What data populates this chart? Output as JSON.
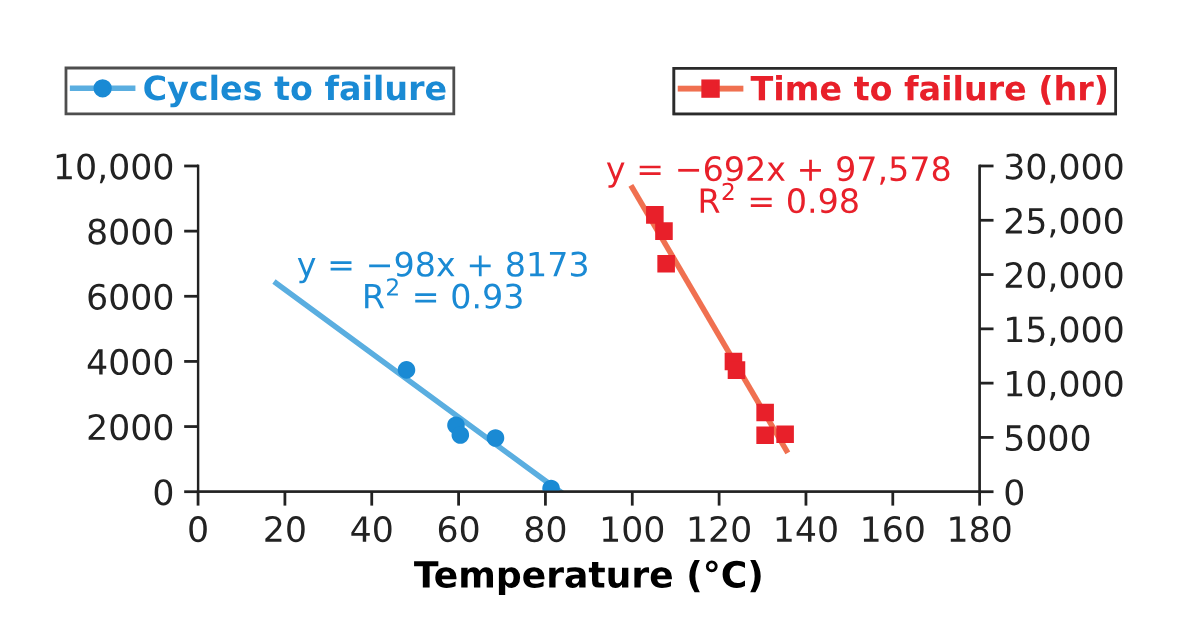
{
  "chart_data": {
    "type": "scatter",
    "xlabel": "Temperature (°C)",
    "xlim": [
      0,
      180
    ],
    "xticks": [
      0,
      20,
      40,
      60,
      80,
      100,
      120,
      140,
      160,
      180
    ],
    "ylim": [
      0,
      10000
    ],
    "yticks": [
      0,
      2000,
      4000,
      6000,
      8000,
      {
        "value": 10000,
        "label": "10,000"
      }
    ],
    "y2lim": [
      0,
      30000
    ],
    "y2ticks": [
      0,
      5000,
      {
        "value": 10000,
        "label": "10,000"
      },
      {
        "value": 15000,
        "label": "15,000"
      },
      {
        "value": 20000,
        "label": "20,000"
      },
      {
        "value": 25000,
        "label": "25,000"
      },
      {
        "value": 30000,
        "label": "30,000"
      }
    ],
    "grid": false,
    "legend": "top",
    "series": [
      {
        "name": "Cycles to failure",
        "color": "#1a8ad4",
        "marker": "circle",
        "x": [
          48,
          59.4,
          60.4,
          68.5,
          81.3
        ],
        "values": [
          3740,
          2040,
          1740,
          1650,
          100
        ]
      },
      {
        "type": "line",
        "color": "#5aaee0",
        "marker": "none",
        "x": [
          18,
          83.4
        ],
        "values": [
          6400,
          0
        ]
      },
      {
        "name": "Time to failure (hr)",
        "axis": "y2",
        "color": "#e8202a",
        "marker": "square",
        "x": [
          105.2,
          107.3,
          107.8,
          123.3,
          124,
          130.6,
          130.6,
          135.2
        ],
        "values": [
          25500,
          24000,
          21000,
          12000,
          11200,
          7300,
          5200,
          5300
        ]
      },
      {
        "type": "line",
        "axis": "y2",
        "color": "#f07050",
        "marker": "none",
        "x": [
          100,
          135.5
        ],
        "values": [
          28000,
          3800
        ]
      }
    ],
    "annotations": [
      "y = −98x + 8173\nR$^{2}$ = 0.93",
      "y = −692x + 97,578\nR$^{2}$ = 0.98"
    ]
  }
}
